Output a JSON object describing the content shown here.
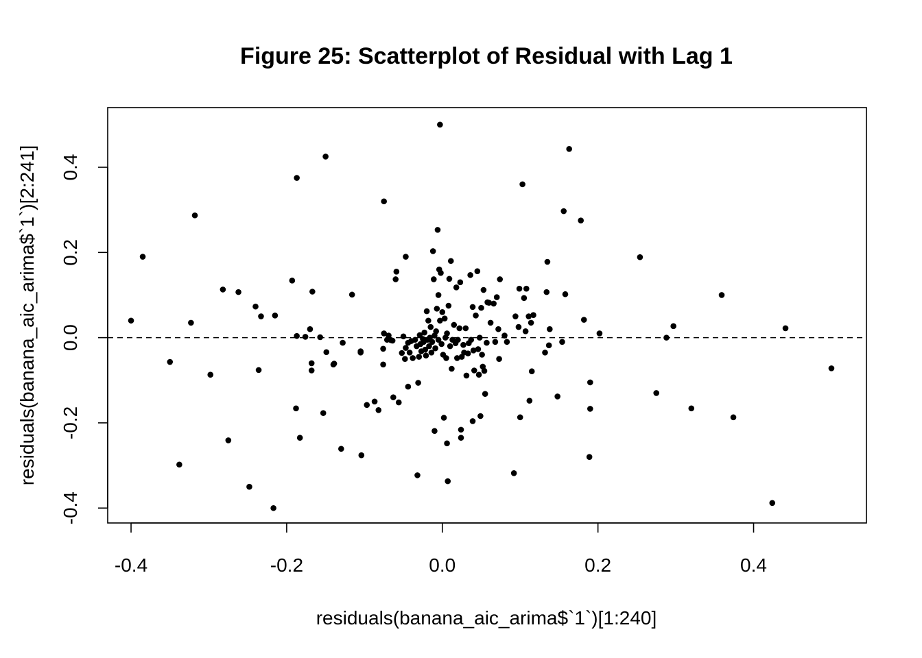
{
  "chart_data": {
    "type": "scatter",
    "title": "Figure 25: Scatterplot of Residual with Lag 1",
    "xlabel": "residuals(banana_aic_arima$`1`)[1:240]",
    "ylabel": "residuals(banana_aic_arima$`1`)[2:241]",
    "xlim": [
      -0.43,
      0.545
    ],
    "ylim": [
      -0.435,
      0.54
    ],
    "x_ticks": [
      -0.4,
      -0.2,
      0.0,
      0.2,
      0.4
    ],
    "x_tick_labels": [
      "-0.4",
      "-0.2",
      "0.0",
      "0.2",
      "0.4"
    ],
    "y_ticks": [
      -0.4,
      -0.2,
      0.0,
      0.2,
      0.4
    ],
    "y_tick_labels": [
      "-0.4",
      "-0.2",
      "0.0",
      "0.2",
      "0.4"
    ],
    "reference_line": {
      "y": 0,
      "style": "dashed"
    },
    "grid": false,
    "legend": "none",
    "marker_color": "#000000",
    "points": [
      [
        -0.4,
        0.04
      ],
      [
        -0.385,
        0.19
      ],
      [
        -0.35,
        -0.057
      ],
      [
        -0.323,
        0.035
      ],
      [
        -0.318,
        0.287
      ],
      [
        -0.298,
        -0.087
      ],
      [
        -0.282,
        0.113
      ],
      [
        -0.275,
        -0.241
      ],
      [
        -0.262,
        0.107
      ],
      [
        -0.248,
        -0.35
      ],
      [
        -0.24,
        0.073
      ],
      [
        -0.236,
        -0.076
      ],
      [
        -0.233,
        0.05
      ],
      [
        -0.217,
        -0.4
      ],
      [
        -0.215,
        0.052
      ],
      [
        -0.338,
        -0.298
      ],
      [
        -0.193,
        0.134
      ],
      [
        -0.188,
        -0.166
      ],
      [
        -0.187,
        0.375
      ],
      [
        -0.187,
        0.004
      ],
      [
        -0.183,
        -0.235
      ],
      [
        -0.176,
        0.002
      ],
      [
        -0.17,
        0.02
      ],
      [
        -0.167,
        0.108
      ],
      [
        -0.168,
        -0.06
      ],
      [
        -0.168,
        -0.077
      ],
      [
        -0.157,
        0.001
      ],
      [
        -0.153,
        -0.177
      ],
      [
        -0.15,
        0.425
      ],
      [
        -0.149,
        -0.034
      ],
      [
        -0.14,
        -0.063
      ],
      [
        -0.139,
        -0.061
      ],
      [
        -0.13,
        -0.261
      ],
      [
        -0.128,
        -0.012
      ],
      [
        -0.116,
        0.101
      ],
      [
        -0.105,
        -0.035
      ],
      [
        -0.105,
        -0.032
      ],
      [
        -0.104,
        -0.276
      ],
      [
        -0.097,
        -0.158
      ],
      [
        -0.087,
        -0.15
      ],
      [
        -0.082,
        -0.17
      ],
      [
        -0.076,
        -0.063
      ],
      [
        -0.076,
        -0.026
      ],
      [
        -0.075,
        0.01
      ],
      [
        -0.075,
        0.32
      ],
      [
        -0.071,
        -0.005
      ],
      [
        -0.069,
        0.005
      ],
      [
        -0.066,
        -0.006
      ],
      [
        -0.064,
        -0.007
      ],
      [
        -0.063,
        -0.14
      ],
      [
        -0.06,
        0.137
      ],
      [
        -0.059,
        0.155
      ],
      [
        -0.056,
        -0.152
      ],
      [
        -0.052,
        -0.036
      ],
      [
        -0.05,
        0.003
      ],
      [
        -0.048,
        -0.05
      ],
      [
        -0.047,
        -0.024
      ],
      [
        -0.047,
        0.19
      ],
      [
        -0.044,
        -0.115
      ],
      [
        -0.044,
        -0.012
      ],
      [
        -0.042,
        -0.035
      ],
      [
        -0.04,
        -0.008
      ],
      [
        -0.038,
        -0.048
      ],
      [
        -0.035,
        -0.005
      ],
      [
        -0.033,
        -0.02
      ],
      [
        -0.032,
        -0.323
      ],
      [
        -0.031,
        -0.106
      ],
      [
        -0.03,
        -0.045
      ],
      [
        -0.029,
        0.006
      ],
      [
        -0.028,
        -0.015
      ],
      [
        -0.027,
        -0.032
      ],
      [
        -0.025,
        -0.003
      ],
      [
        -0.024,
        -0.01
      ],
      [
        -0.023,
        0.012
      ],
      [
        -0.022,
        -0.028
      ],
      [
        -0.021,
        -0.042
      ],
      [
        -0.02,
        0.062
      ],
      [
        -0.019,
        -0.005
      ],
      [
        -0.018,
        0.04
      ],
      [
        -0.017,
        -0.02
      ],
      [
        -0.016,
        0.0
      ],
      [
        -0.015,
        0.025
      ],
      [
        -0.014,
        -0.035
      ],
      [
        -0.013,
        -0.01
      ],
      [
        -0.012,
        0.203
      ],
      [
        -0.011,
        0.137
      ],
      [
        -0.01,
        0.005
      ],
      [
        -0.01,
        -0.219
      ],
      [
        -0.009,
        -0.025
      ],
      [
        -0.008,
        0.015
      ],
      [
        -0.007,
        0.068
      ],
      [
        -0.006,
        0.253
      ],
      [
        -0.005,
        -0.005
      ],
      [
        -0.005,
        0.1
      ],
      [
        -0.004,
        0.16
      ],
      [
        -0.003,
        0.04
      ],
      [
        -0.003,
        0.5
      ],
      [
        -0.002,
        0.152
      ],
      [
        -0.001,
        -0.015
      ],
      [
        0.0,
        0.06
      ],
      [
        0.001,
        -0.04
      ],
      [
        0.002,
        -0.188
      ],
      [
        0.003,
        0.045
      ],
      [
        0.004,
        0.0
      ],
      [
        0.005,
        -0.048
      ],
      [
        0.006,
        0.01
      ],
      [
        0.006,
        -0.248
      ],
      [
        0.007,
        -0.337
      ],
      [
        0.008,
        0.075
      ],
      [
        0.009,
        0.138
      ],
      [
        0.01,
        -0.02
      ],
      [
        0.011,
        0.18
      ],
      [
        0.012,
        -0.073
      ],
      [
        0.013,
        -0.005
      ],
      [
        0.015,
        0.03
      ],
      [
        0.017,
        -0.013
      ],
      [
        0.018,
        0.118
      ],
      [
        0.019,
        -0.048
      ],
      [
        0.02,
        -0.005
      ],
      [
        0.022,
        0.022
      ],
      [
        0.023,
        0.13
      ],
      [
        0.024,
        -0.235
      ],
      [
        0.024,
        -0.216
      ],
      [
        0.025,
        -0.045
      ],
      [
        0.027,
        -0.017
      ],
      [
        0.028,
        -0.035
      ],
      [
        0.03,
        0.022
      ],
      [
        0.031,
        -0.089
      ],
      [
        0.033,
        -0.037
      ],
      [
        0.034,
        -0.013
      ],
      [
        0.036,
        0.147
      ],
      [
        0.037,
        -0.005
      ],
      [
        0.039,
        -0.196
      ],
      [
        0.039,
        0.072
      ],
      [
        0.04,
        -0.03
      ],
      [
        0.041,
        -0.077
      ],
      [
        0.043,
        0.052
      ],
      [
        0.045,
        0.156
      ],
      [
        0.046,
        -0.027
      ],
      [
        0.047,
        -0.087
      ],
      [
        0.048,
        0.0
      ],
      [
        0.049,
        -0.184
      ],
      [
        0.05,
        0.07
      ],
      [
        0.051,
        -0.04
      ],
      [
        0.052,
        -0.068
      ],
      [
        0.053,
        0.112
      ],
      [
        0.054,
        -0.078
      ],
      [
        0.055,
        -0.132
      ],
      [
        0.057,
        -0.012
      ],
      [
        0.058,
        0.083
      ],
      [
        0.06,
        0.082
      ],
      [
        0.062,
        0.035
      ],
      [
        0.066,
        0.08
      ],
      [
        0.068,
        -0.01
      ],
      [
        0.07,
        0.095
      ],
      [
        0.072,
        0.02
      ],
      [
        0.073,
        -0.05
      ],
      [
        0.074,
        0.137
      ],
      [
        0.08,
        0.005
      ],
      [
        0.083,
        -0.01
      ],
      [
        0.092,
        -0.318
      ],
      [
        0.094,
        0.05
      ],
      [
        0.098,
        0.025
      ],
      [
        0.099,
        0.115
      ],
      [
        0.1,
        -0.187
      ],
      [
        0.103,
        0.36
      ],
      [
        0.105,
        0.093
      ],
      [
        0.107,
        0.015
      ],
      [
        0.108,
        0.115
      ],
      [
        0.111,
        0.05
      ],
      [
        0.112,
        -0.148
      ],
      [
        0.114,
        0.035
      ],
      [
        0.115,
        -0.079
      ],
      [
        0.117,
        0.053
      ],
      [
        0.132,
        -0.035
      ],
      [
        0.134,
        0.107
      ],
      [
        0.135,
        0.178
      ],
      [
        0.137,
        -0.018
      ],
      [
        0.138,
        0.02
      ],
      [
        0.148,
        -0.138
      ],
      [
        0.154,
        -0.01
      ],
      [
        0.156,
        0.297
      ],
      [
        0.158,
        0.102
      ],
      [
        0.163,
        0.443
      ],
      [
        0.178,
        0.275
      ],
      [
        0.182,
        0.042
      ],
      [
        0.189,
        -0.28
      ],
      [
        0.19,
        -0.167
      ],
      [
        0.19,
        -0.105
      ],
      [
        0.202,
        0.01
      ],
      [
        0.254,
        0.189
      ],
      [
        0.275,
        -0.13
      ],
      [
        0.288,
        0.0
      ],
      [
        0.297,
        0.027
      ],
      [
        0.32,
        -0.166
      ],
      [
        0.359,
        0.1
      ],
      [
        0.374,
        -0.187
      ],
      [
        0.424,
        -0.388
      ],
      [
        0.441,
        0.022
      ],
      [
        0.5,
        -0.072
      ]
    ]
  }
}
